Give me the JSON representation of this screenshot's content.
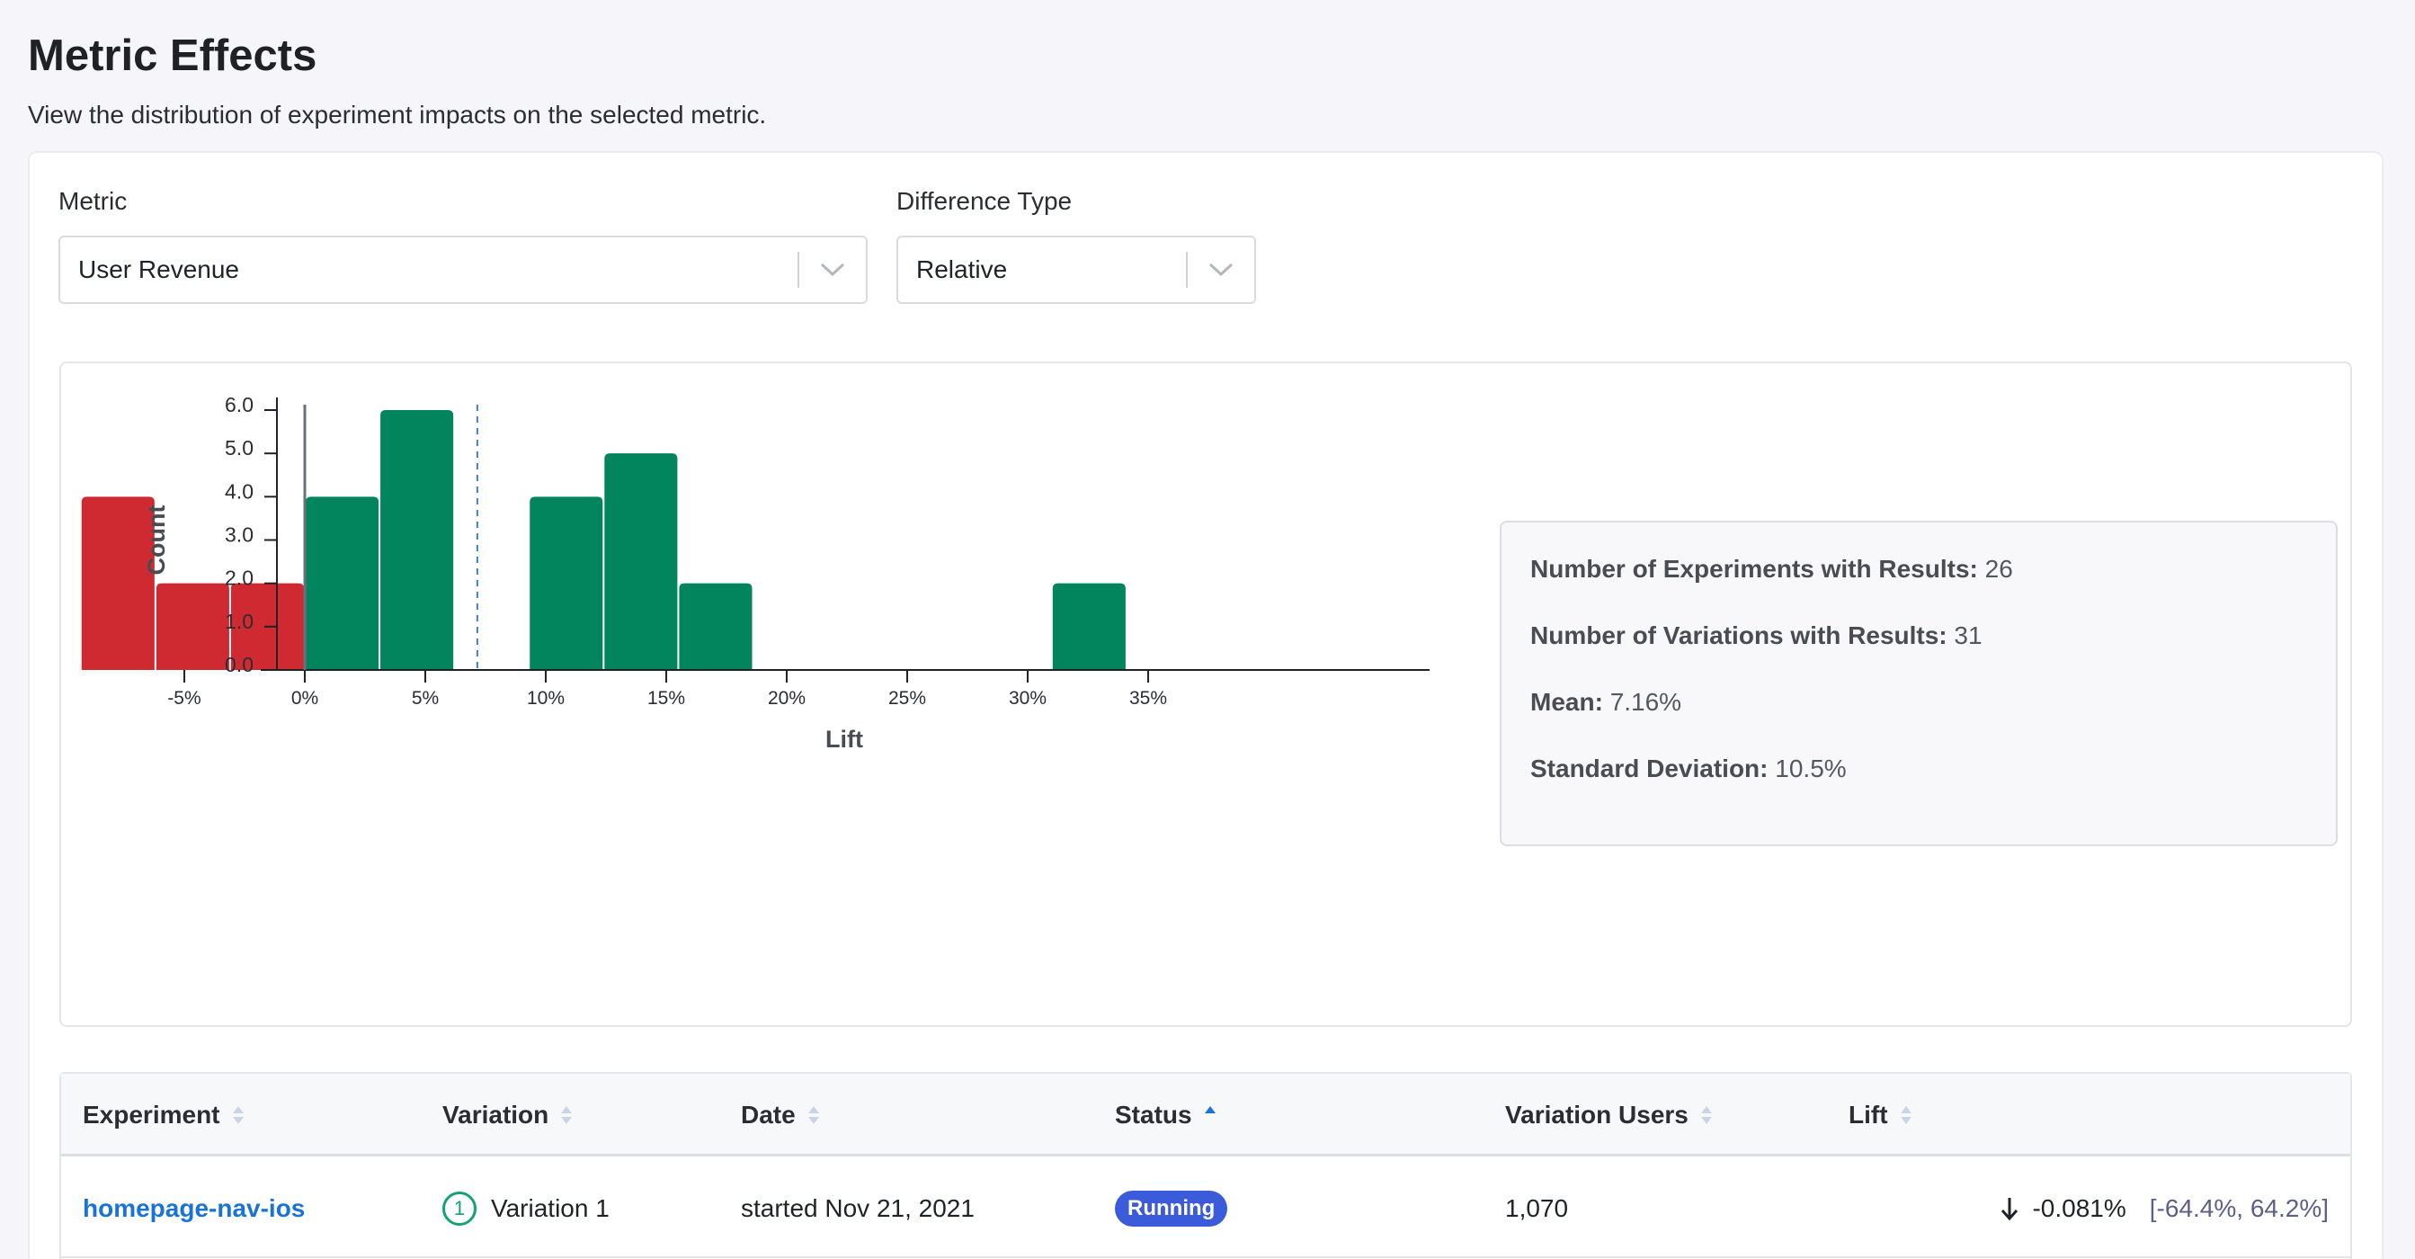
{
  "page": {
    "title": "Metric Effects",
    "subtitle": "View the distribution of experiment impacts on the selected metric."
  },
  "filters": {
    "metric_label": "Metric",
    "metric_value": "User Revenue",
    "difference_label": "Difference Type",
    "difference_value": "Relative"
  },
  "chart_data": {
    "type": "bar",
    "xlabel": "Lift",
    "ylabel": "Count",
    "x_ticks": [
      "-5%",
      "0%",
      "5%",
      "10%",
      "15%",
      "20%",
      "25%",
      "30%",
      "35%"
    ],
    "y_ticks": [
      "0.0",
      "1.0",
      "2.0",
      "3.0",
      "4.0",
      "5.0",
      "6.0"
    ],
    "ylim": [
      0,
      6
    ],
    "bins": [
      {
        "start": -9.3,
        "end": -6.2,
        "count": 4,
        "sign": "negative"
      },
      {
        "start": -6.2,
        "end": -3.1,
        "count": 2,
        "sign": "negative"
      },
      {
        "start": -3.1,
        "end": 0,
        "count": 2,
        "sign": "negative"
      },
      {
        "start": 0,
        "end": 3.1,
        "count": 4,
        "sign": "positive"
      },
      {
        "start": 3.1,
        "end": 6.2,
        "count": 6,
        "sign": "positive"
      },
      {
        "start": 9.3,
        "end": 12.4,
        "count": 4,
        "sign": "positive"
      },
      {
        "start": 12.4,
        "end": 15.5,
        "count": 5,
        "sign": "positive"
      },
      {
        "start": 15.5,
        "end": 18.6,
        "count": 2,
        "sign": "positive"
      },
      {
        "start": 31.0,
        "end": 34.1,
        "count": 2,
        "sign": "positive"
      }
    ],
    "zero_line": 0,
    "mean_line": 7.16,
    "colors": {
      "negative": "#cf2a32",
      "positive": "#02845d",
      "mean": "#3b82c4",
      "zero": "#6b6f86"
    }
  },
  "stats": [
    {
      "label": "Number of Experiments with Results:",
      "value": "26"
    },
    {
      "label": "Number of Variations with Results:",
      "value": "31"
    },
    {
      "label": "Mean:",
      "value": "7.16%"
    },
    {
      "label": "Standard Deviation:",
      "value": "10.5%"
    }
  ],
  "table": {
    "columns": {
      "experiment": "Experiment",
      "variation": "Variation",
      "date": "Date",
      "status": "Status",
      "users": "Variation Users",
      "lift": "Lift"
    },
    "rows": [
      {
        "experiment": "homepage-nav-ios",
        "variation_index": "1",
        "variation": "Variation 1",
        "date": "started Nov 21, 2021",
        "status": "Running",
        "users": "1,070",
        "lift": "-0.081%",
        "ci": "[-64.4%, 64.2%]"
      }
    ]
  }
}
